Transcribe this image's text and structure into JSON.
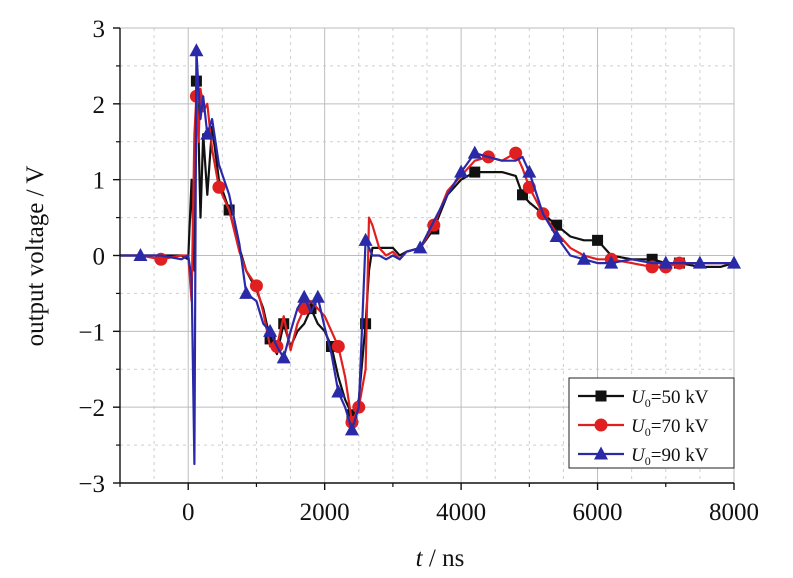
{
  "chart_data": {
    "type": "line",
    "xlabel_var": "t",
    "xlabel_unit": " / ns",
    "ylabel": "output voltage / V",
    "xlim": [
      -1000,
      8000
    ],
    "ylim": [
      -3,
      3
    ],
    "x_ticks": [
      0,
      2000,
      4000,
      6000,
      8000
    ],
    "y_ticks": [
      -3,
      -2,
      -1,
      0,
      1,
      2,
      3
    ],
    "grid": true,
    "legend_position": "bottom-right",
    "series": [
      {
        "legend_var": "U",
        "legend_sub": "0",
        "legend_val": "=50 kV",
        "color": "#111111",
        "marker": "square",
        "x": [
          -1000,
          -700,
          -400,
          -100,
          0,
          50,
          90,
          120,
          150,
          180,
          220,
          280,
          350,
          450,
          600,
          750,
          850,
          1000,
          1100,
          1200,
          1300,
          1400,
          1500,
          1600,
          1700,
          1800,
          1900,
          2000,
          2100,
          2200,
          2300,
          2400,
          2500,
          2600,
          2650,
          2700,
          2800,
          2900,
          3000,
          3100,
          3200,
          3400,
          3600,
          3800,
          4000,
          4200,
          4400,
          4600,
          4800,
          4900,
          5000,
          5200,
          5400,
          5600,
          5800,
          6000,
          6200,
          6500,
          6800,
          7000,
          7200,
          7500,
          7800,
          8000
        ],
        "y": [
          0,
          0,
          0,
          0,
          -0.05,
          1.0,
          -0.2,
          2.3,
          1.6,
          0.5,
          1.6,
          0.8,
          1.7,
          1.0,
          0.6,
          0.1,
          -0.2,
          -0.45,
          -0.7,
          -1.1,
          -1.3,
          -0.9,
          -1.2,
          -1.0,
          -0.9,
          -0.7,
          -0.9,
          -1.0,
          -1.2,
          -1.6,
          -1.9,
          -2.1,
          -1.9,
          -0.9,
          -0.2,
          0.1,
          0.1,
          0.1,
          0.1,
          0.0,
          0.05,
          0.1,
          0.35,
          0.8,
          1.0,
          1.1,
          1.1,
          1.1,
          1.05,
          0.8,
          0.7,
          0.55,
          0.4,
          0.25,
          0.2,
          0.2,
          0.0,
          -0.05,
          -0.05,
          -0.1,
          -0.1,
          -0.15,
          -0.15,
          -0.1
        ],
        "marker_idx": [
          7,
          14,
          19,
          21,
          25,
          28,
          31,
          33,
          42,
          45,
          49,
          52,
          55,
          58,
          60
        ]
      },
      {
        "legend_var": "U",
        "legend_sub": "0",
        "legend_val": "=70 kV",
        "color": "#e02020",
        "marker": "circle",
        "x": [
          -1000,
          -700,
          -400,
          -100,
          0,
          50,
          90,
          120,
          150,
          180,
          220,
          280,
          350,
          450,
          600,
          750,
          850,
          1000,
          1100,
          1200,
          1300,
          1400,
          1500,
          1600,
          1700,
          1800,
          1900,
          2000,
          2100,
          2200,
          2300,
          2400,
          2500,
          2600,
          2650,
          2700,
          2800,
          2900,
          3000,
          3100,
          3200,
          3400,
          3600,
          3800,
          4000,
          4200,
          4400,
          4600,
          4800,
          4900,
          5000,
          5200,
          5400,
          5600,
          5800,
          6000,
          6200,
          6500,
          6800,
          7000,
          7200,
          7500,
          7800,
          8000
        ],
        "y": [
          0,
          0,
          -0.05,
          0,
          0,
          -0.6,
          1.6,
          2.1,
          1.5,
          2.2,
          1.9,
          2.0,
          1.4,
          0.9,
          0.6,
          0.05,
          -0.2,
          -0.4,
          -0.75,
          -1.2,
          -1.2,
          -0.8,
          -1.25,
          -0.9,
          -0.7,
          -0.6,
          -0.7,
          -0.8,
          -1.0,
          -1.2,
          -1.6,
          -2.2,
          -2.0,
          -1.5,
          0.5,
          0.4,
          0.1,
          0.0,
          0.05,
          -0.05,
          0.05,
          0.1,
          0.4,
          0.85,
          1.05,
          1.25,
          1.3,
          1.25,
          1.35,
          1.15,
          0.9,
          0.55,
          0.3,
          0.1,
          0.0,
          -0.05,
          -0.05,
          -0.1,
          -0.15,
          -0.15,
          -0.1,
          -0.1,
          -0.1,
          -0.1
        ],
        "marker_idx": [
          2,
          7,
          13,
          17,
          20,
          24,
          29,
          31,
          32,
          42,
          46,
          48,
          50,
          51,
          56,
          58,
          59,
          60
        ]
      },
      {
        "legend_var": "U",
        "legend_sub": "0",
        "legend_val": "=90 kV",
        "color": "#2a2aa8",
        "marker": "triangle",
        "x": [
          -1000,
          -700,
          -400,
          -100,
          0,
          50,
          90,
          120,
          150,
          180,
          220,
          280,
          350,
          450,
          600,
          750,
          850,
          1000,
          1100,
          1200,
          1300,
          1400,
          1500,
          1600,
          1700,
          1800,
          1900,
          2000,
          2100,
          2200,
          2300,
          2400,
          2500,
          2600,
          2650,
          2700,
          2800,
          2900,
          3000,
          3100,
          3200,
          3400,
          3600,
          3800,
          4000,
          4200,
          4400,
          4600,
          4800,
          4900,
          5000,
          5200,
          5400,
          5600,
          5800,
          6000,
          6200,
          6500,
          6800,
          7000,
          7200,
          7500,
          7800,
          8000
        ],
        "y": [
          0,
          0,
          0,
          -0.05,
          0,
          -0.3,
          -2.75,
          2.7,
          2.2,
          1.8,
          2.1,
          1.6,
          1.8,
          1.2,
          0.8,
          0.15,
          -0.5,
          -0.6,
          -0.9,
          -1.0,
          -1.2,
          -1.35,
          -1.0,
          -0.7,
          -0.55,
          -0.75,
          -0.55,
          -0.95,
          -1.3,
          -1.8,
          -2.0,
          -2.3,
          -2.0,
          0.2,
          0.1,
          0.0,
          0.0,
          -0.05,
          0.0,
          -0.05,
          0.05,
          0.1,
          0.45,
          0.8,
          1.1,
          1.35,
          1.3,
          1.25,
          1.25,
          1.3,
          1.1,
          0.55,
          0.25,
          0.0,
          -0.05,
          -0.1,
          -0.1,
          -0.05,
          -0.1,
          -0.1,
          -0.1,
          -0.1,
          -0.1,
          -0.1
        ],
        "marker_idx": [
          1,
          7,
          11,
          16,
          19,
          21,
          24,
          26,
          29,
          31,
          33,
          41,
          44,
          45,
          50,
          52,
          54,
          56,
          59,
          61,
          63
        ]
      }
    ]
  }
}
